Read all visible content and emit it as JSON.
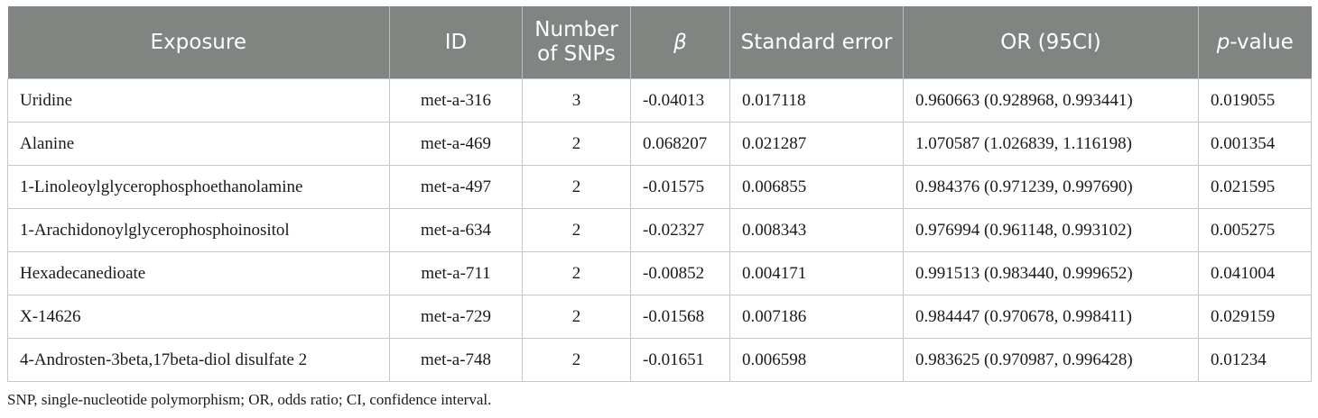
{
  "table": {
    "headers": {
      "exposure": "Exposure",
      "id": "ID",
      "num_snps": "Number of SNPs",
      "beta": "β",
      "se": "Standard error",
      "or": "OR (95CI)",
      "p_italic": "p",
      "p_rest": "-value"
    },
    "rows": [
      {
        "exposure": "Uridine",
        "id": "met-a-316",
        "n": "3",
        "beta": "-0.04013",
        "se": "0.017118",
        "or": "0.960663 (0.928968, 0.993441)",
        "p": "0.019055"
      },
      {
        "exposure": "Alanine",
        "id": "met-a-469",
        "n": "2",
        "beta": "0.068207",
        "se": "0.021287",
        "or": "1.070587 (1.026839, 1.116198)",
        "p": "0.001354"
      },
      {
        "exposure": "1-Linoleoylglycerophosphoethanolamine",
        "id": "met-a-497",
        "n": "2",
        "beta": "-0.01575",
        "se": "0.006855",
        "or": "0.984376 (0.971239, 0.997690)",
        "p": "0.021595"
      },
      {
        "exposure": "1-Arachidonoylglycerophosphoinositol",
        "id": "met-a-634",
        "n": "2",
        "beta": "-0.02327",
        "se": "0.008343",
        "or": "0.976994 (0.961148, 0.993102)",
        "p": "0.005275"
      },
      {
        "exposure": "Hexadecanedioate",
        "id": "met-a-711",
        "n": "2",
        "beta": "-0.00852",
        "se": "0.004171",
        "or": "0.991513 (0.983440, 0.999652)",
        "p": "0.041004"
      },
      {
        "exposure": "X-14626",
        "id": "met-a-729",
        "n": "2",
        "beta": "-0.01568",
        "se": "0.007186",
        "or": "0.984447 (0.970678, 0.998411)",
        "p": "0.029159"
      },
      {
        "exposure": "4-Androsten-3beta,17beta-diol disulfate 2",
        "id": "met-a-748",
        "n": "2",
        "beta": "-0.01651",
        "se": "0.006598",
        "or": "0.983625 (0.970987, 0.996428)",
        "p": "0.01234"
      }
    ]
  },
  "footnote": "SNP, single-nucleotide polymorphism; OR, odds ratio; CI, confidence interval.",
  "colors": {
    "header_bg": "#808581",
    "header_text": "#ffffff",
    "grid": "#c7c7c7"
  }
}
